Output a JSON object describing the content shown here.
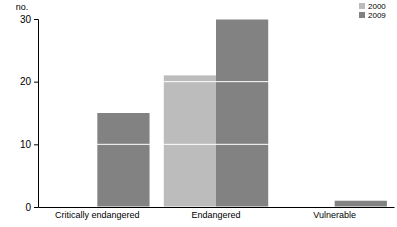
{
  "chart_data": {
    "type": "bar",
    "y_label": "no.",
    "categories": [
      "Critically endangered",
      "Endangered",
      "Vulnerable"
    ],
    "series": [
      {
        "name": "2000",
        "color": "#bcbcbc",
        "values": [
          0,
          21,
          0
        ]
      },
      {
        "name": "2009",
        "color": "#828282",
        "values": [
          15,
          30,
          1
        ]
      }
    ],
    "ylim": [
      0,
      30
    ],
    "yticks": [
      0,
      10,
      20,
      30
    ],
    "grid": true,
    "legend": "top-right"
  }
}
